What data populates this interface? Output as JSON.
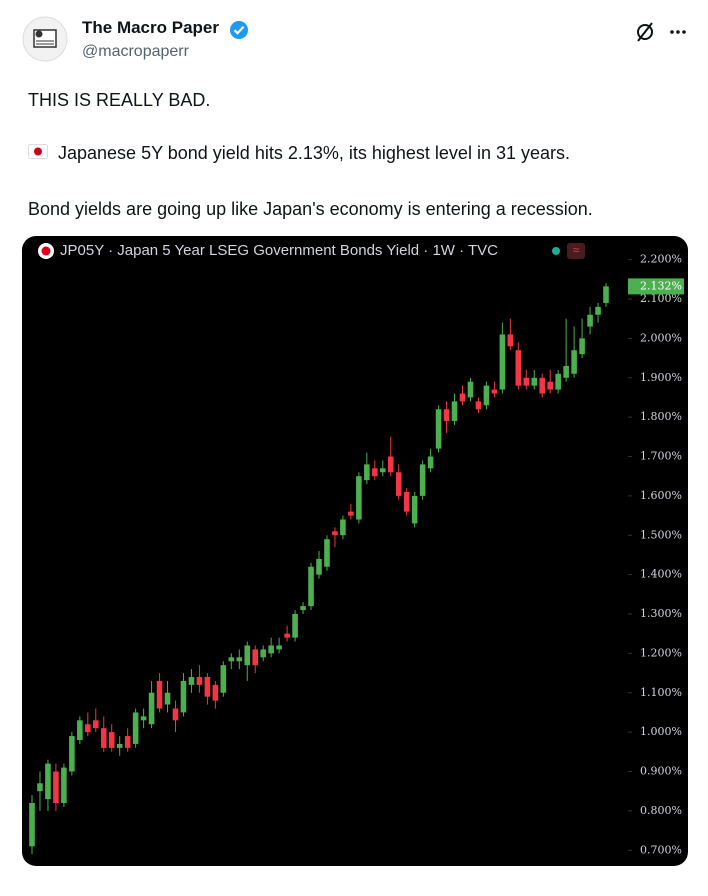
{
  "author": {
    "name": "The Macro Paper",
    "handle": "@macropaperr"
  },
  "tweet": {
    "lines": [
      "THIS IS REALLY BAD.",
      "Japanese 5Y bond yield hits 2.13%, its highest level in 31 years.",
      "Bond yields are going up like Japan's economy is entering a recession."
    ]
  },
  "chart_data": {
    "type": "candlestick",
    "title": "JP05Y · Japan 5 Year LSEG Government Bonds Yield · 1W · TVC",
    "up_color": "#4caf50",
    "down_color": "#f23645",
    "ylim": [
      0.66,
      2.26
    ],
    "yticks": [
      {
        "value": 2.2,
        "label": "2.200%"
      },
      {
        "value": 2.1,
        "label": "2.100%"
      },
      {
        "value": 2.0,
        "label": "2.000%"
      },
      {
        "value": 1.9,
        "label": "1.900%"
      },
      {
        "value": 1.8,
        "label": "1.800%"
      },
      {
        "value": 1.7,
        "label": "1.700%"
      },
      {
        "value": 1.6,
        "label": "1.600%"
      },
      {
        "value": 1.5,
        "label": "1.500%"
      },
      {
        "value": 1.4,
        "label": "1.400%"
      },
      {
        "value": 1.3,
        "label": "1.300%"
      },
      {
        "value": 1.2,
        "label": "1.200%"
      },
      {
        "value": 1.1,
        "label": "1.100%"
      },
      {
        "value": 1.0,
        "label": "1.000%"
      },
      {
        "value": 0.9,
        "label": "0.900%"
      },
      {
        "value": 0.8,
        "label": "0.800%"
      },
      {
        "value": 0.7,
        "label": "0.700%"
      }
    ],
    "last_value_label": "2.132%",
    "open": [
      0.71,
      0.85,
      0.83,
      0.9,
      0.82,
      0.9,
      0.98,
      1.02,
      1.03,
      1.01,
      1.0,
      0.96,
      0.99,
      0.97,
      1.03,
      1.02,
      1.13,
      1.07,
      1.06,
      1.05,
      1.12,
      1.14,
      1.14,
      1.12,
      1.1,
      1.18,
      1.18,
      1.17,
      1.21,
      1.19,
      1.2,
      1.21,
      1.25,
      1.24,
      1.31,
      1.32,
      1.4,
      1.42,
      1.51,
      1.5,
      1.56,
      1.54,
      1.64,
      1.67,
      1.66,
      1.7,
      1.66,
      1.61,
      1.53,
      1.6,
      1.67,
      1.72,
      1.82,
      1.79,
      1.86,
      1.85,
      1.84,
      1.83,
      1.87,
      1.87,
      2.01,
      1.97,
      1.9,
      1.88,
      1.9,
      1.89,
      1.87,
      1.9,
      1.91,
      1.96,
      2.03,
      2.06,
      2.09
    ],
    "high": [
      0.84,
      0.9,
      0.93,
      0.92,
      0.92,
      1.0,
      1.04,
      1.05,
      1.06,
      1.04,
      1.02,
      0.99,
      1.01,
      1.06,
      1.06,
      1.13,
      1.15,
      1.13,
      1.08,
      1.15,
      1.16,
      1.17,
      1.15,
      1.13,
      1.18,
      1.2,
      1.21,
      1.23,
      1.22,
      1.22,
      1.24,
      1.24,
      1.27,
      1.31,
      1.33,
      1.43,
      1.46,
      1.5,
      1.52,
      1.55,
      1.58,
      1.66,
      1.71,
      1.69,
      1.69,
      1.75,
      1.68,
      1.62,
      1.61,
      1.69,
      1.72,
      1.83,
      1.84,
      1.86,
      1.88,
      1.9,
      1.85,
      1.89,
      1.89,
      2.04,
      2.05,
      1.99,
      1.92,
      1.92,
      1.91,
      1.92,
      1.92,
      2.05,
      2.03,
      2.05,
      2.08,
      2.09,
      2.14
    ],
    "low": [
      0.69,
      0.8,
      0.8,
      0.8,
      0.81,
      0.89,
      0.97,
      0.99,
      1.0,
      0.95,
      0.95,
      0.94,
      0.95,
      0.96,
      1.01,
      1.01,
      1.05,
      1.05,
      1.0,
      1.04,
      1.1,
      1.1,
      1.07,
      1.06,
      1.09,
      1.16,
      1.16,
      1.13,
      1.15,
      1.18,
      1.19,
      1.2,
      1.23,
      1.23,
      1.3,
      1.31,
      1.39,
      1.41,
      1.47,
      1.49,
      1.54,
      1.53,
      1.63,
      1.64,
      1.65,
      1.65,
      1.59,
      1.55,
      1.52,
      1.59,
      1.66,
      1.71,
      1.76,
      1.78,
      1.83,
      1.84,
      1.81,
      1.82,
      1.85,
      1.86,
      1.97,
      1.87,
      1.87,
      1.87,
      1.85,
      1.86,
      1.86,
      1.89,
      1.9,
      1.95,
      2.01,
      2.04,
      2.08
    ],
    "close": [
      0.82,
      0.87,
      0.92,
      0.82,
      0.91,
      0.99,
      1.03,
      1.0,
      1.01,
      0.96,
      0.96,
      0.97,
      0.96,
      1.05,
      1.04,
      1.1,
      1.06,
      1.1,
      1.03,
      1.13,
      1.14,
      1.12,
      1.09,
      1.08,
      1.17,
      1.19,
      1.19,
      1.22,
      1.17,
      1.21,
      1.22,
      1.22,
      1.24,
      1.3,
      1.32,
      1.42,
      1.44,
      1.49,
      1.5,
      1.54,
      1.55,
      1.65,
      1.68,
      1.65,
      1.67,
      1.66,
      1.6,
      1.56,
      1.6,
      1.68,
      1.7,
      1.82,
      1.79,
      1.84,
      1.84,
      1.89,
      1.82,
      1.88,
      1.86,
      2.01,
      1.98,
      1.88,
      1.88,
      1.9,
      1.86,
      1.87,
      1.91,
      1.93,
      1.97,
      2.0,
      2.06,
      2.08,
      2.132
    ]
  }
}
